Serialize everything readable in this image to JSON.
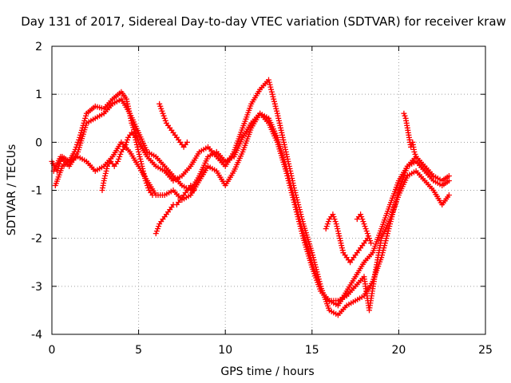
{
  "chart_data": {
    "type": "scatter",
    "title": "Day 131 of 2017, Sidereal Day-to-day VTEC variation (SDTVAR) for receiver kraw",
    "xlabel": "GPS time / hours",
    "ylabel": "SDTVAR / TECUs",
    "xlim": [
      0,
      25
    ],
    "ylim": [
      -4,
      2
    ],
    "x_ticks": [
      0,
      5,
      10,
      15,
      20,
      25
    ],
    "y_ticks": [
      -4,
      -3,
      -2,
      -1,
      0,
      1,
      2
    ],
    "grid": true,
    "marker": "plus",
    "series": [
      {
        "color": "#ff0000",
        "x": [
          0.0,
          0.3,
          0.6,
          1.0,
          1.3,
          1.6,
          2.0,
          2.5,
          3.0,
          3.5,
          4.0,
          4.3,
          4.6,
          5.0,
          5.5,
          6.0,
          6.5,
          7.0,
          7.5,
          8.0,
          8.5,
          9.0,
          9.5,
          10.0,
          10.5,
          11.0,
          11.5,
          12.0,
          12.5,
          13.0,
          13.5,
          14.0,
          14.5,
          15.0,
          15.5,
          16.0,
          16.5,
          17.0,
          17.5,
          18.0,
          18.5,
          19.0,
          19.5,
          20.0,
          20.5,
          21.0,
          21.5,
          22.0,
          22.5,
          22.9
        ],
        "y": [
          -0.4,
          -0.6,
          -0.3,
          -0.4,
          -0.2,
          0.1,
          0.6,
          0.75,
          0.7,
          0.9,
          1.05,
          0.9,
          0.4,
          0.0,
          -0.3,
          -0.5,
          -0.6,
          -0.8,
          -0.7,
          -0.5,
          -0.2,
          -0.1,
          -0.3,
          -0.5,
          -0.2,
          0.3,
          0.8,
          1.1,
          1.3,
          0.6,
          -0.2,
          -1.0,
          -1.7,
          -2.3,
          -3.0,
          -3.5,
          -3.6,
          -3.4,
          -3.3,
          -3.2,
          -2.9,
          -2.4,
          -1.7,
          -1.0,
          -0.5,
          -0.3,
          -0.5,
          -0.7,
          -0.8,
          -0.7
        ]
      },
      {
        "color": "#ff0000",
        "x": [
          0.1,
          0.5,
          1.0,
          1.5,
          2.0,
          2.5,
          3.0,
          3.5,
          4.0,
          4.5,
          5.0,
          5.5,
          6.0,
          6.5,
          7.0,
          7.5,
          8.0,
          8.5,
          9.0,
          9.5,
          10.0,
          10.5,
          11.0,
          11.5,
          12.0,
          12.5,
          13.0,
          13.5,
          14.0,
          14.5,
          15.0,
          15.5,
          16.0,
          16.5,
          17.0,
          17.5,
          18.0,
          18.5,
          19.0,
          19.5,
          20.0,
          20.5,
          21.0,
          21.5,
          22.0,
          22.5,
          22.9
        ],
        "y": [
          -0.6,
          -0.3,
          -0.5,
          -0.2,
          0.4,
          0.5,
          0.6,
          0.8,
          0.9,
          0.6,
          0.2,
          -0.2,
          -0.3,
          -0.5,
          -0.7,
          -0.9,
          -1.0,
          -0.7,
          -0.3,
          -0.2,
          -0.4,
          -0.3,
          0.1,
          0.4,
          0.6,
          0.4,
          0.0,
          -0.6,
          -1.3,
          -2.0,
          -2.6,
          -3.1,
          -3.3,
          -3.4,
          -3.1,
          -2.8,
          -2.5,
          -2.3,
          -1.8,
          -1.3,
          -0.8,
          -0.5,
          -0.4,
          -0.6,
          -0.8,
          -0.9,
          -0.8
        ]
      },
      {
        "color": "#ff0000",
        "x": [
          0.2,
          0.6,
          1.0,
          1.5,
          2.0,
          2.5,
          3.0,
          3.5,
          4.0,
          4.5,
          5.0,
          5.5,
          6.0,
          6.5,
          7.0,
          7.5,
          8.0,
          8.5,
          9.0,
          9.5,
          10.0,
          10.5,
          11.0,
          11.5,
          12.0,
          12.5,
          13.0,
          13.5,
          14.0,
          14.5,
          15.0,
          15.5,
          16.0,
          16.5,
          17.0,
          17.5,
          18.0,
          18.3,
          18.7,
          19.0,
          19.5,
          20.0,
          20.5,
          21.0,
          21.5,
          22.0,
          22.5,
          22.9
        ],
        "y": [
          -0.9,
          -0.5,
          -0.4,
          -0.3,
          -0.4,
          -0.6,
          -0.5,
          -0.3,
          0.0,
          -0.2,
          -0.5,
          -0.8,
          -1.1,
          -1.1,
          -1.0,
          -1.2,
          -1.1,
          -0.8,
          -0.5,
          -0.6,
          -0.9,
          -0.6,
          -0.2,
          0.3,
          0.6,
          0.5,
          0.1,
          -0.5,
          -1.2,
          -1.9,
          -2.5,
          -3.1,
          -3.3,
          -3.3,
          -3.2,
          -3.0,
          -2.8,
          -3.5,
          -2.6,
          -2.0,
          -1.6,
          -1.1,
          -0.7,
          -0.6,
          -0.8,
          -1.0,
          -1.3,
          -1.1
        ]
      },
      {
        "color": "#ff0000",
        "x": [
          2.9,
          3.0,
          3.2,
          3.4,
          3.6,
          3.8,
          4.0,
          4.2,
          4.4,
          4.6,
          4.8,
          5.0,
          5.2,
          5.4,
          5.6,
          5.8
        ],
        "y": [
          -1.0,
          -0.8,
          -0.5,
          -0.4,
          -0.5,
          -0.4,
          -0.2,
          -0.1,
          0.1,
          0.2,
          0.1,
          -0.2,
          -0.5,
          -0.8,
          -1.0,
          -1.1
        ]
      },
      {
        "color": "#ff0000",
        "x": [
          6.0,
          6.2,
          6.4,
          6.6,
          6.8,
          7.0,
          7.2,
          7.4,
          7.6,
          7.8,
          8.0,
          8.2
        ],
        "y": [
          -1.9,
          -1.7,
          -1.6,
          -1.5,
          -1.4,
          -1.3,
          -1.3,
          -1.2,
          -1.1,
          -1.0,
          -0.9,
          -1.0
        ]
      },
      {
        "color": "#ff0000",
        "x": [
          6.2,
          6.4,
          6.6,
          6.8,
          7.0,
          7.2,
          7.4,
          7.6,
          7.8
        ],
        "y": [
          0.8,
          0.6,
          0.4,
          0.3,
          0.2,
          0.1,
          0.0,
          -0.1,
          0.0
        ]
      },
      {
        "color": "#ff0000",
        "x": [
          15.8,
          16.0,
          16.2,
          16.4,
          16.6,
          16.8,
          17.0,
          17.2,
          17.4,
          17.6,
          17.8,
          18.0,
          18.2
        ],
        "y": [
          -1.8,
          -1.6,
          -1.5,
          -1.7,
          -2.0,
          -2.3,
          -2.4,
          -2.5,
          -2.4,
          -2.3,
          -2.2,
          -2.1,
          -2.0
        ]
      },
      {
        "color": "#ff0000",
        "x": [
          17.6,
          17.8,
          18.0,
          18.2,
          18.4
        ],
        "y": [
          -1.6,
          -1.5,
          -1.7,
          -1.9,
          -2.1
        ]
      },
      {
        "color": "#ff0000",
        "x": [
          20.3,
          20.4,
          20.5,
          20.6,
          20.7,
          20.8,
          20.9,
          21.0
        ],
        "y": [
          0.6,
          0.5,
          0.3,
          0.1,
          -0.1,
          0.0,
          -0.2,
          -0.3
        ]
      }
    ]
  }
}
